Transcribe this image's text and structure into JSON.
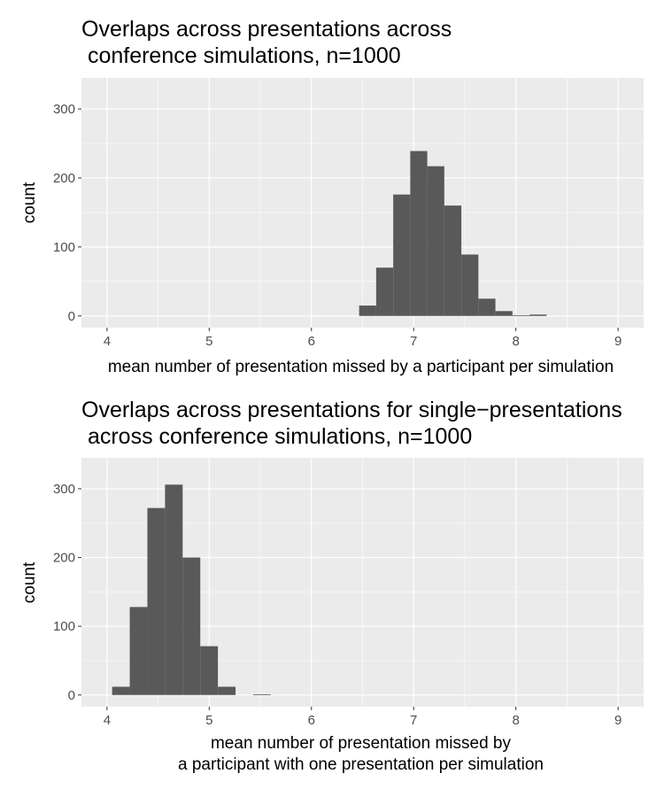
{
  "chart_data": [
    {
      "type": "bar",
      "title": "Overlaps across presentations across\n conference simulations, n=1000",
      "xlabel": "mean number of presentation missed by a participant per simulation",
      "ylabel": "count",
      "xlim": [
        3.75,
        9.25
      ],
      "ylim": [
        -17,
        345
      ],
      "x_ticks": [
        4,
        5,
        6,
        7,
        8,
        9
      ],
      "y_ticks": [
        0,
        100,
        200,
        300
      ],
      "bin_width": 0.1667,
      "grid": true,
      "bars": [
        {
          "x0": 6.4667,
          "x1": 6.6333,
          "count": 15
        },
        {
          "x0": 6.6333,
          "x1": 6.8,
          "count": 70
        },
        {
          "x0": 6.8,
          "x1": 6.9667,
          "count": 176
        },
        {
          "x0": 6.9667,
          "x1": 7.1333,
          "count": 239
        },
        {
          "x0": 7.1333,
          "x1": 7.3,
          "count": 217
        },
        {
          "x0": 7.3,
          "x1": 7.4667,
          "count": 160
        },
        {
          "x0": 7.4667,
          "x1": 7.6333,
          "count": 89
        },
        {
          "x0": 7.6333,
          "x1": 7.8,
          "count": 25
        },
        {
          "x0": 7.8,
          "x1": 7.9667,
          "count": 7
        },
        {
          "x0": 7.9667,
          "x1": 8.1333,
          "count": 1
        },
        {
          "x0": 8.1333,
          "x1": 8.3,
          "count": 2
        }
      ]
    },
    {
      "type": "bar",
      "title": "Overlaps across presentations for single−presentations\n across conference simulations, n=1000",
      "xlabel": "mean number of presentation missed by\na participant with one presentation per simulation",
      "ylabel": "count",
      "xlim": [
        3.75,
        9.25
      ],
      "ylim": [
        -17,
        345
      ],
      "x_ticks": [
        4,
        5,
        6,
        7,
        8,
        9
      ],
      "y_ticks": [
        0,
        100,
        200,
        300
      ],
      "bin_width": 0.1725,
      "grid": true,
      "bars": [
        {
          "x0": 4.05,
          "x1": 4.2225,
          "count": 12
        },
        {
          "x0": 4.2225,
          "x1": 4.395,
          "count": 128
        },
        {
          "x0": 4.395,
          "x1": 4.5675,
          "count": 272
        },
        {
          "x0": 4.5675,
          "x1": 4.74,
          "count": 306
        },
        {
          "x0": 4.74,
          "x1": 4.9125,
          "count": 200
        },
        {
          "x0": 4.9125,
          "x1": 5.085,
          "count": 71
        },
        {
          "x0": 5.085,
          "x1": 5.2575,
          "count": 12
        },
        {
          "x0": 5.43,
          "x1": 5.6025,
          "count": 1
        }
      ]
    }
  ]
}
